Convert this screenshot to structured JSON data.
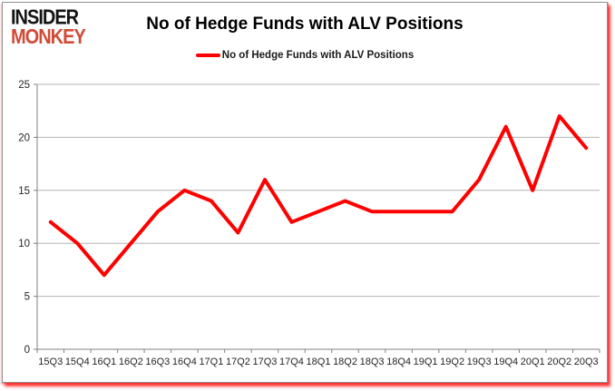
{
  "logo": {
    "line1": "INSIDER",
    "line2": "MONKEY"
  },
  "title": "No of Hedge Funds with ALV Positions",
  "legend": {
    "label": "No of Hedge Funds with ALV Positions"
  },
  "colors": {
    "series_red": "#ff0000",
    "logo_black": "#141414",
    "logo_red": "#d24b38",
    "axis_line": "#808080",
    "gridline": "#b3b3b3",
    "tick_label": "#262626",
    "title_text": "#000000"
  },
  "chart_data": {
    "type": "line",
    "title": "No of Hedge Funds with ALV Positions",
    "categories": [
      "15Q3",
      "15Q4",
      "16Q1",
      "16Q2",
      "16Q3",
      "16Q4",
      "17Q1",
      "17Q2",
      "17Q3",
      "17Q4",
      "18Q1",
      "18Q2",
      "18Q3",
      "18Q4",
      "19Q1",
      "19Q2",
      "19Q3",
      "19Q4",
      "20Q1",
      "20Q2",
      "20Q3"
    ],
    "series": [
      {
        "name": "No of Hedge Funds with ALV Positions",
        "color": "#ff0000",
        "values": [
          12,
          10,
          7,
          10,
          13,
          15,
          14,
          11,
          16,
          12,
          13,
          14,
          13,
          13,
          13,
          13,
          16,
          21,
          15,
          22,
          19
        ]
      }
    ],
    "ylim": [
      0,
      25
    ],
    "yticks": [
      0,
      5,
      10,
      15,
      20,
      25
    ],
    "grid": true,
    "legend_position": "top",
    "xlabel": "",
    "ylabel": ""
  }
}
